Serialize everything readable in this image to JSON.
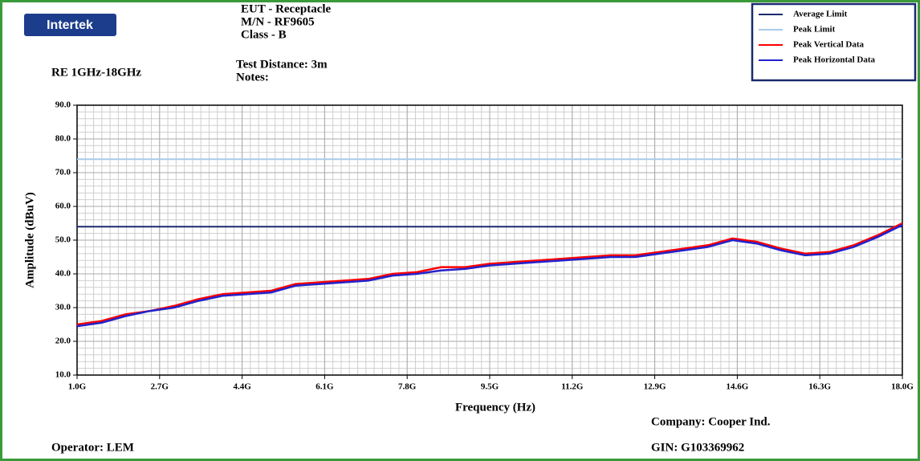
{
  "logo": "Intertek",
  "header": {
    "eut": "EUT - Receptacle",
    "model": "M/N - RF9605",
    "class": "Class - B",
    "distance": "Test Distance: 3m",
    "notes": "Notes:",
    "test": "RE 1GHz-18GHz"
  },
  "footer": {
    "company": "Company: Cooper Ind.",
    "gin": "GIN: G103369962",
    "operator": "Operator: LEM"
  },
  "chart_data": {
    "type": "line",
    "xlabel": "Frequency (Hz)",
    "ylabel": "Amplitude (dBuV)",
    "xlim": [
      1000000000,
      18000000000
    ],
    "ylim": [
      10,
      90
    ],
    "xticks": [
      {
        "value": 1000000000,
        "label": "1.0G"
      },
      {
        "value": 2700000000,
        "label": "2.7G"
      },
      {
        "value": 4400000000,
        "label": "4.4G"
      },
      {
        "value": 6100000000,
        "label": "6.1G"
      },
      {
        "value": 7800000000,
        "label": "7.8G"
      },
      {
        "value": 9500000000,
        "label": "9.5G"
      },
      {
        "value": 11200000000,
        "label": "11.2G"
      },
      {
        "value": 12900000000,
        "label": "12.9G"
      },
      {
        "value": 14600000000,
        "label": "14.6G"
      },
      {
        "value": 16300000000,
        "label": "16.3G"
      },
      {
        "value": 18000000000,
        "label": "18.0G"
      }
    ],
    "yticks": [
      {
        "value": 10,
        "label": "10.0"
      },
      {
        "value": 20,
        "label": "20.0"
      },
      {
        "value": 30,
        "label": "30.0"
      },
      {
        "value": 40,
        "label": "40.0"
      },
      {
        "value": 50,
        "label": "50.0"
      },
      {
        "value": 60,
        "label": "60.0"
      },
      {
        "value": 70,
        "label": "70.0"
      },
      {
        "value": 80,
        "label": "80.0"
      },
      {
        "value": 90,
        "label": "90.0"
      }
    ],
    "grid": true,
    "legend": "top-right",
    "series": [
      {
        "name": "Average Limit",
        "color": "#1b2a6e",
        "x": [
          1000000000,
          18000000000
        ],
        "values": [
          54,
          54
        ]
      },
      {
        "name": "Peak Limit",
        "color": "#a9cbe9",
        "x": [
          1000000000,
          18000000000
        ],
        "values": [
          74,
          74
        ]
      },
      {
        "name": "Peak Vertical Data",
        "color": "#ff0000",
        "x": [
          1000000000,
          1500000000,
          2000000000,
          2500000000,
          3000000000,
          3500000000,
          4000000000,
          4500000000,
          5000000000,
          5500000000,
          6000000000,
          6500000000,
          7000000000,
          7500000000,
          8000000000,
          8500000000,
          9000000000,
          9500000000,
          10000000000,
          10500000000,
          11000000000,
          11500000000,
          12000000000,
          12500000000,
          13000000000,
          13500000000,
          14000000000,
          14500000000,
          15000000000,
          15500000000,
          16000000000,
          16500000000,
          17000000000,
          17500000000,
          18000000000
        ],
        "values": [
          25,
          26,
          28,
          29,
          30.5,
          32.5,
          34,
          34.5,
          35,
          37,
          37.5,
          38,
          38.5,
          40,
          40.5,
          42,
          42,
          43,
          43.5,
          44,
          44.5,
          45,
          45.5,
          45.5,
          46.5,
          47.5,
          48.5,
          50.5,
          49.5,
          47.5,
          46,
          46.5,
          48.5,
          51.5,
          55
        ]
      },
      {
        "name": "Peak Horizontal Data",
        "color": "#2222cc",
        "x": [
          1000000000,
          1500000000,
          2000000000,
          2500000000,
          3000000000,
          3500000000,
          4000000000,
          4500000000,
          5000000000,
          5500000000,
          6000000000,
          6500000000,
          7000000000,
          7500000000,
          8000000000,
          8500000000,
          9000000000,
          9500000000,
          10000000000,
          10500000000,
          11000000000,
          11500000000,
          12000000000,
          12500000000,
          13000000000,
          13500000000,
          14000000000,
          14500000000,
          15000000000,
          15500000000,
          16000000000,
          16500000000,
          17000000000,
          17500000000,
          18000000000
        ],
        "values": [
          24.5,
          25.5,
          27.5,
          29,
          30,
          32,
          33.5,
          34,
          34.5,
          36.5,
          37,
          37.5,
          38,
          39.5,
          40,
          41,
          41.5,
          42.5,
          43,
          43.5,
          44,
          44.5,
          45,
          45,
          46,
          47,
          48,
          50,
          49,
          47,
          45.5,
          46,
          48,
          51,
          54.5
        ]
      }
    ]
  }
}
